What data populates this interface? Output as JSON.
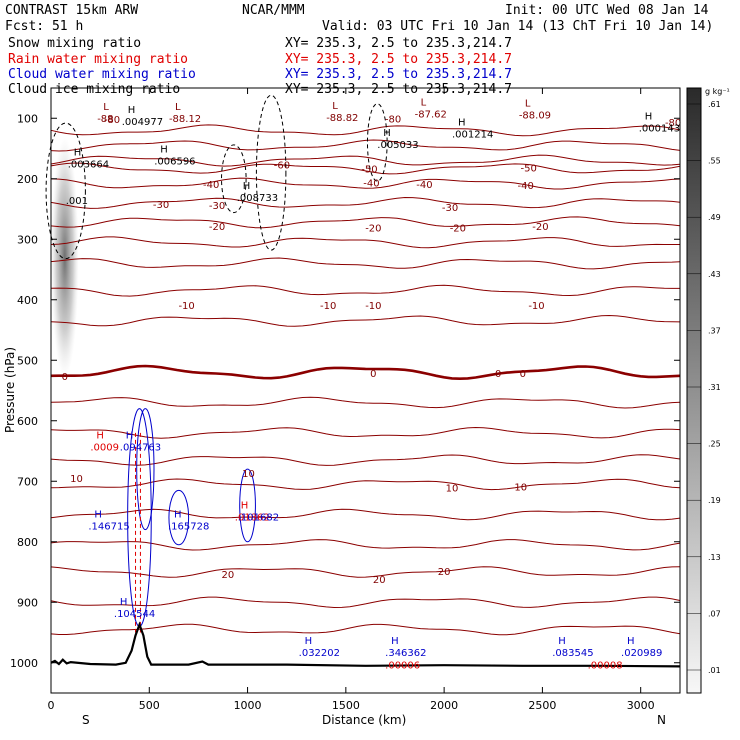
{
  "header": {
    "model": "CONTRAST 15km ARW",
    "center": "NCAR/MMM",
    "init": "Init: 00 UTC Wed 08 Jan 14",
    "fcst": "Fcst:   51 h",
    "valid": "Valid: 03 UTC Fri 10 Jan 14 (13 ChT Fri 10 Jan 14)"
  },
  "legend": [
    {
      "label": "Snow mixing ratio",
      "xy": "XY= 235.3,  2.5 to 235.3,214.7",
      "color": "#000000"
    },
    {
      "label": "Rain water mixing ratio",
      "xy": "XY= 235.3,  2.5 to 235.3,214.7",
      "color": "#e00000"
    },
    {
      "label": "Cloud water mixing ratio",
      "xy": "XY= 235.3,  2.5 to 235.3,214.7",
      "color": "#0000cc"
    },
    {
      "label": "Cloud ice mixing ratio",
      "xy": "XY= 235.3,  2.5 to 235.3,214.7",
      "color": "#000000"
    }
  ],
  "chart_data": {
    "type": "cross-section",
    "xlabel": "Distance (km)",
    "ylabel": "Pressure (hPa)",
    "xlim": [
      0,
      3200
    ],
    "ylim": [
      1050,
      50
    ],
    "x_ticks": [
      0,
      500,
      1000,
      1500,
      2000,
      2500,
      3000
    ],
    "y_ticks": [
      100,
      200,
      300,
      400,
      500,
      600,
      700,
      800,
      900,
      1000
    ],
    "x_end_labels": {
      "left": "S",
      "right": "N"
    },
    "temperature_contours": [
      {
        "p": 120,
        "label": "-80"
      },
      {
        "p": 145,
        "label": ""
      },
      {
        "p": 170,
        "label": "-60"
      },
      {
        "p": 183,
        "label": "-50"
      },
      {
        "p": 208,
        "label": "-40"
      },
      {
        "p": 240,
        "label": "-30"
      },
      {
        "p": 272,
        "label": "-20"
      },
      {
        "p": 305,
        "label": ""
      },
      {
        "p": 340,
        "label": ""
      },
      {
        "p": 385,
        "label": "-10"
      },
      {
        "p": 435,
        "label": ""
      },
      {
        "p": 520,
        "label": "0"
      },
      {
        "p": 570,
        "label": ""
      },
      {
        "p": 620,
        "label": ""
      },
      {
        "p": 665,
        "label": ""
      },
      {
        "p": 705,
        "label": "10"
      },
      {
        "p": 755,
        "label": ""
      },
      {
        "p": 805,
        "label": ""
      },
      {
        "p": 850,
        "label": "20"
      },
      {
        "p": 900,
        "label": ""
      },
      {
        "p": 945,
        "label": ""
      }
    ],
    "temperature_labels": [
      {
        "x": 310,
        "p": 103,
        "text": "-80",
        "color": "#800000"
      },
      {
        "x": 1740,
        "p": 102,
        "text": "-80",
        "color": "#800000"
      },
      {
        "x": 3165,
        "p": 108,
        "text": "-80",
        "color": "#800000"
      },
      {
        "x": 1175,
        "p": 178,
        "text": "-60",
        "color": "#800000"
      },
      {
        "x": 1620,
        "p": 185,
        "text": "-50",
        "color": "#800000"
      },
      {
        "x": 2430,
        "p": 183,
        "text": "-50",
        "color": "#800000"
      },
      {
        "x": 815,
        "p": 210,
        "text": "-40",
        "color": "#800000"
      },
      {
        "x": 1630,
        "p": 208,
        "text": "-40",
        "color": "#800000"
      },
      {
        "x": 1900,
        "p": 210,
        "text": "-40",
        "color": "#800000"
      },
      {
        "x": 2415,
        "p": 212,
        "text": "-40",
        "color": "#800000"
      },
      {
        "x": 560,
        "p": 243,
        "text": "-30",
        "color": "#800000"
      },
      {
        "x": 845,
        "p": 245,
        "text": "-30",
        "color": "#800000"
      },
      {
        "x": 2030,
        "p": 248,
        "text": "-30",
        "color": "#800000"
      },
      {
        "x": 845,
        "p": 280,
        "text": "-20",
        "color": "#800000"
      },
      {
        "x": 1640,
        "p": 282,
        "text": "-20",
        "color": "#800000"
      },
      {
        "x": 2070,
        "p": 282,
        "text": "-20",
        "color": "#800000"
      },
      {
        "x": 2490,
        "p": 280,
        "text": "-20",
        "color": "#800000"
      },
      {
        "x": 690,
        "p": 410,
        "text": "-10",
        "color": "#800000"
      },
      {
        "x": 1410,
        "p": 410,
        "text": "-10",
        "color": "#800000"
      },
      {
        "x": 1640,
        "p": 410,
        "text": "-10",
        "color": "#800000"
      },
      {
        "x": 2470,
        "p": 410,
        "text": "-10",
        "color": "#800000"
      },
      {
        "x": 70,
        "p": 528,
        "text": "0",
        "color": "#800000"
      },
      {
        "x": 1640,
        "p": 523,
        "text": "0",
        "color": "#800000"
      },
      {
        "x": 2275,
        "p": 523,
        "text": "0",
        "color": "#800000"
      },
      {
        "x": 2400,
        "p": 523,
        "text": "0",
        "color": "#800000"
      },
      {
        "x": 130,
        "p": 696,
        "text": "10",
        "color": "#800000"
      },
      {
        "x": 1005,
        "p": 688,
        "text": "10",
        "color": "#800000"
      },
      {
        "x": 2040,
        "p": 712,
        "text": "10",
        "color": "#800000"
      },
      {
        "x": 2390,
        "p": 710,
        "text": "10",
        "color": "#800000"
      },
      {
        "x": 900,
        "p": 855,
        "text": "20",
        "color": "#800000"
      },
      {
        "x": 1670,
        "p": 863,
        "text": "20",
        "color": "#800000"
      },
      {
        "x": 2000,
        "p": 850,
        "text": "20",
        "color": "#800000"
      }
    ],
    "extrema": [
      {
        "x": 235,
        "p": 90,
        "kind": "L",
        "value": "-88",
        "color": "#800000"
      },
      {
        "x": 360,
        "p": 95,
        "kind": "H",
        "value": ".004977",
        "color": "#000000"
      },
      {
        "x": 600,
        "p": 90,
        "kind": "L",
        "value": "-88.12",
        "color": "#800000"
      },
      {
        "x": 1400,
        "p": 88,
        "kind": "L",
        "value": "-88.82",
        "color": "#800000"
      },
      {
        "x": 1850,
        "p": 82,
        "kind": "L",
        "value": "-87.62",
        "color": "#800000"
      },
      {
        "x": 2380,
        "p": 84,
        "kind": "L",
        "value": "-88.09",
        "color": "#800000"
      },
      {
        "x": 2990,
        "p": 105,
        "kind": "H",
        "value": ".000143",
        "color": "#000000"
      },
      {
        "x": 2040,
        "p": 115,
        "kind": "H",
        "value": ".001214",
        "color": "#000000"
      },
      {
        "x": 1660,
        "p": 133,
        "kind": "H",
        "value": ".005033",
        "color": "#000000"
      },
      {
        "x": 85,
        "p": 165,
        "kind": "H",
        "value": ".003664",
        "color": "#000000"
      },
      {
        "x": 525,
        "p": 160,
        "kind": "H",
        "value": ".006596",
        "color": "#000000"
      },
      {
        "x": 945,
        "p": 220,
        "kind": "H",
        "value": ".008733",
        "color": "#000000"
      },
      {
        "x": 75,
        "p": 225,
        "kind": "",
        "value": ".001",
        "color": "#000000"
      },
      {
        "x": 200,
        "p": 633,
        "kind": "H",
        "value": ".0009",
        "color": "#e00000"
      },
      {
        "x": 350,
        "p": 633,
        "kind": "H",
        "value": ".094763",
        "color": "#0000cc"
      },
      {
        "x": 190,
        "p": 763,
        "kind": "H",
        "value": ".146715",
        "color": "#0000cc"
      },
      {
        "x": 595,
        "p": 763,
        "kind": "H",
        "value": ".165728",
        "color": "#0000cc"
      },
      {
        "x": 935,
        "p": 748,
        "kind": "H",
        "value": ".01862",
        "color": "#e00000"
      },
      {
        "x": 950,
        "p": 748,
        "kind": "",
        "value": ".101682",
        "color": "#0000cc"
      },
      {
        "x": 320,
        "p": 908,
        "kind": "H",
        "value": ".104544",
        "color": "#0000cc"
      },
      {
        "x": 1260,
        "p": 972,
        "kind": "H",
        "value": ".032202",
        "color": "#0000cc"
      },
      {
        "x": 1700,
        "p": 972,
        "kind": "H",
        "value": ".346362",
        "color": "#0000cc"
      },
      {
        "x": 1700,
        "p": 993,
        "kind": "",
        "value": ".00006",
        "color": "#e00000"
      },
      {
        "x": 2550,
        "p": 972,
        "kind": "H",
        "value": ".083545",
        "color": "#0000cc"
      },
      {
        "x": 2730,
        "p": 993,
        "kind": "",
        "value": ".00008",
        "color": "#e00000"
      },
      {
        "x": 2900,
        "p": 972,
        "kind": "H",
        "value": ".020989",
        "color": "#0000cc"
      }
    ],
    "colorbar": {
      "unit": "g kg⁻¹",
      "labels": [
        ".61",
        ".55",
        ".49",
        ".43",
        ".37",
        ".31",
        ".25",
        ".19",
        ".13",
        ".07",
        ".01"
      ]
    },
    "terrain": [
      [
        0,
        1000
      ],
      [
        20,
        997
      ],
      [
        40,
        1002
      ],
      [
        60,
        995
      ],
      [
        80,
        1001
      ],
      [
        100,
        999
      ],
      [
        200,
        1002
      ],
      [
        330,
        1003
      ],
      [
        380,
        1000
      ],
      [
        410,
        980
      ],
      [
        430,
        955
      ],
      [
        450,
        937
      ],
      [
        470,
        955
      ],
      [
        490,
        990
      ],
      [
        510,
        1003
      ],
      [
        700,
        1003
      ],
      [
        770,
        998
      ],
      [
        800,
        1003
      ],
      [
        1200,
        1003
      ],
      [
        1600,
        1005
      ],
      [
        2000,
        1004
      ],
      [
        2400,
        1005
      ],
      [
        2800,
        1005
      ],
      [
        3200,
        1006
      ]
    ]
  }
}
